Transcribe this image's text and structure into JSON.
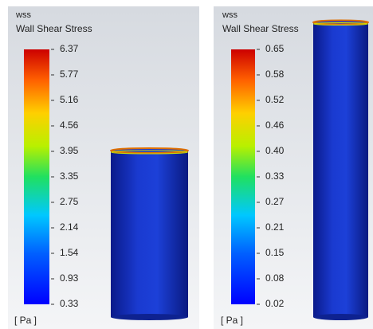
{
  "panels": [
    {
      "variable": "wss",
      "label": "Wall Shear Stress",
      "ticks": [
        "6.37",
        "5.77",
        "5.16",
        "4.56",
        "3.95",
        "3.35",
        "2.75",
        "2.14",
        "1.54",
        "0.93",
        "0.33"
      ],
      "unit": "[ Pa ]"
    },
    {
      "variable": "wss",
      "label": "Wall Shear Stress",
      "ticks": [
        "0.65",
        "0.58",
        "0.52",
        "0.46",
        "0.40",
        "0.33",
        "0.27",
        "0.21",
        "0.15",
        "0.08",
        "0.02"
      ],
      "unit": "[ Pa ]"
    }
  ]
}
